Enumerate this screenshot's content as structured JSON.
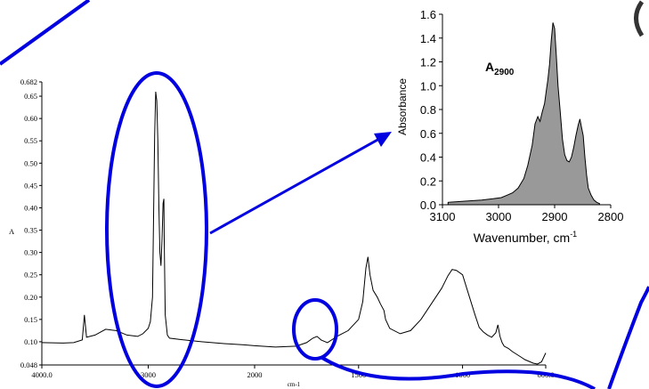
{
  "chart_data": [
    {
      "type": "line",
      "title": "",
      "xlabel": "cm-1",
      "ylabel": "A",
      "xlim": [
        4000,
        600
      ],
      "ylim": [
        0.048,
        0.682
      ],
      "x_tick_labels": [
        "4000.0",
        "3000",
        "2000",
        "1500",
        "1000",
        "600.0"
      ],
      "y_tick_labels": [
        "0.682",
        "0.65",
        "0.60",
        "0.55",
        "0.50",
        "0.45",
        "0.40",
        "0.35",
        "0.30",
        "0.25",
        "0.20",
        "0.15",
        "0.10",
        "0.048"
      ],
      "series": [
        {
          "x": [
            4000,
            3800,
            3700,
            3620,
            3600,
            3580,
            3500,
            3400,
            3300,
            3200,
            3100,
            3050,
            3000,
            2980,
            2960,
            2950,
            2940,
            2930,
            2920,
            2910,
            2900,
            2890,
            2880,
            2870,
            2860,
            2853,
            2850,
            2840,
            2820,
            2800,
            2700,
            2500,
            2300,
            2100,
            2000,
            1900,
            1800,
            1750,
            1720,
            1700,
            1680,
            1650,
            1600,
            1550,
            1500,
            1480,
            1465,
            1455,
            1445,
            1430,
            1410,
            1395,
            1378,
            1370,
            1350,
            1300,
            1250,
            1200,
            1150,
            1100,
            1070,
            1050,
            1030,
            1000,
            970,
            940,
            920,
            900,
            880,
            860,
            840,
            830,
            820,
            810,
            800,
            780,
            760,
            740,
            720,
            700,
            680,
            660,
            640,
            620,
            600
          ],
          "y": [
            0.098,
            0.097,
            0.098,
            0.104,
            0.16,
            0.11,
            0.115,
            0.128,
            0.125,
            0.115,
            0.112,
            0.118,
            0.13,
            0.145,
            0.2,
            0.38,
            0.56,
            0.66,
            0.64,
            0.55,
            0.4,
            0.3,
            0.27,
            0.33,
            0.41,
            0.42,
            0.34,
            0.16,
            0.115,
            0.108,
            0.105,
            0.1,
            0.096,
            0.093,
            0.091,
            0.088,
            0.09,
            0.098,
            0.108,
            0.112,
            0.104,
            0.098,
            0.113,
            0.125,
            0.15,
            0.19,
            0.265,
            0.29,
            0.25,
            0.215,
            0.2,
            0.185,
            0.17,
            0.15,
            0.13,
            0.118,
            0.125,
            0.15,
            0.185,
            0.22,
            0.248,
            0.262,
            0.26,
            0.25,
            0.205,
            0.16,
            0.132,
            0.122,
            0.115,
            0.11,
            0.12,
            0.138,
            0.112,
            0.098,
            0.09,
            0.085,
            0.078,
            0.072,
            0.066,
            0.06,
            0.056,
            0.052,
            0.05,
            0.055,
            0.075
          ]
        }
      ]
    },
    {
      "type": "area",
      "title": "A2900",
      "title_parts": [
        "A",
        "2900"
      ],
      "xlabel": "Wavenumber, cm-1",
      "xlabel_parts": [
        "Wavenumber, cm",
        "-1"
      ],
      "ylabel": "Absorbance",
      "xlim": [
        3100,
        2800
      ],
      "ylim": [
        0.0,
        1.6
      ],
      "x_ticks": [
        3100,
        3000,
        2900,
        2800
      ],
      "x_tick_labels": [
        "3100",
        "3000",
        "2900",
        "2800"
      ],
      "y_ticks": [
        0.0,
        0.2,
        0.4,
        0.6,
        0.8,
        1.0,
        1.2,
        1.4,
        1.6
      ],
      "y_tick_labels": [
        "0.0",
        "0.2",
        "0.4",
        "0.6",
        "0.8",
        "1.0",
        "1.2",
        "1.4",
        "1.6"
      ],
      "series": [
        {
          "x": [
            3090,
            3060,
            3030,
            3010,
            2995,
            2985,
            2975,
            2965,
            2955,
            2948,
            2940,
            2935,
            2930,
            2926,
            2922,
            2918,
            2915,
            2912,
            2909,
            2906,
            2903,
            2900,
            2897,
            2894,
            2890,
            2886,
            2882,
            2878,
            2874,
            2870,
            2866,
            2862,
            2858,
            2855,
            2852,
            2849,
            2846,
            2843,
            2840,
            2835,
            2830,
            2825,
            2820
          ],
          "y": [
            0.02,
            0.03,
            0.04,
            0.05,
            0.06,
            0.08,
            0.1,
            0.14,
            0.22,
            0.33,
            0.5,
            0.68,
            0.74,
            0.7,
            0.78,
            0.85,
            0.95,
            1.05,
            1.18,
            1.38,
            1.53,
            1.48,
            1.25,
            1.0,
            0.78,
            0.55,
            0.42,
            0.37,
            0.36,
            0.4,
            0.48,
            0.58,
            0.67,
            0.72,
            0.65,
            0.58,
            0.4,
            0.25,
            0.14,
            0.08,
            0.04,
            0.02,
            0.01
          ]
        }
      ]
    }
  ]
}
